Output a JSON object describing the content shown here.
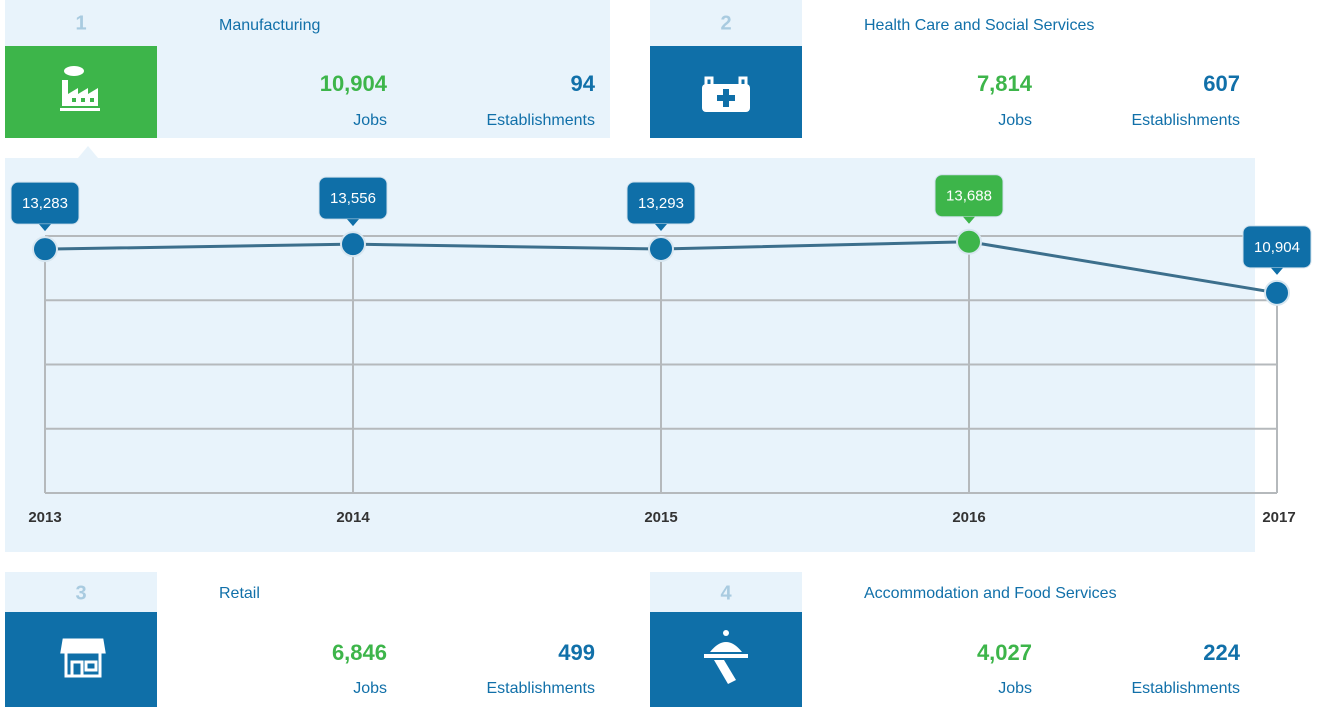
{
  "cards": [
    {
      "rank": "1",
      "title": "Manufacturing",
      "jobs": "10,904",
      "jobs_label": "Jobs",
      "establishments": "94",
      "establishments_label": "Establishments"
    },
    {
      "rank": "2",
      "title": "Health Care and Social Services",
      "jobs": "7,814",
      "jobs_label": "Jobs",
      "establishments": "607",
      "establishments_label": "Establishments"
    },
    {
      "rank": "3",
      "title": "Retail",
      "jobs": "6,846",
      "jobs_label": "Jobs",
      "establishments": "499",
      "establishments_label": "Establishments"
    },
    {
      "rank": "4",
      "title": "Accommodation and Food Services",
      "jobs": "4,027",
      "jobs_label": "Jobs",
      "establishments": "224",
      "establishments_label": "Establishments"
    }
  ],
  "chart_data": {
    "type": "line",
    "categories": [
      "2013",
      "2014",
      "2015",
      "2016",
      "2017"
    ],
    "values": [
      13283,
      13556,
      13293,
      13688,
      10904
    ],
    "value_labels": [
      "13,283",
      "13,556",
      "13,293",
      "13,688",
      "10,904"
    ],
    "color": "#3c6f8c",
    "point_colors": [
      "#0f6fa8",
      "#0f6fa8",
      "#0f6fa8",
      "#3db54a",
      "#0f6fa8"
    ],
    "ylim": [
      0,
      14000
    ],
    "yticks": [
      0,
      3500,
      7000,
      10500,
      14000
    ],
    "grid": true
  }
}
